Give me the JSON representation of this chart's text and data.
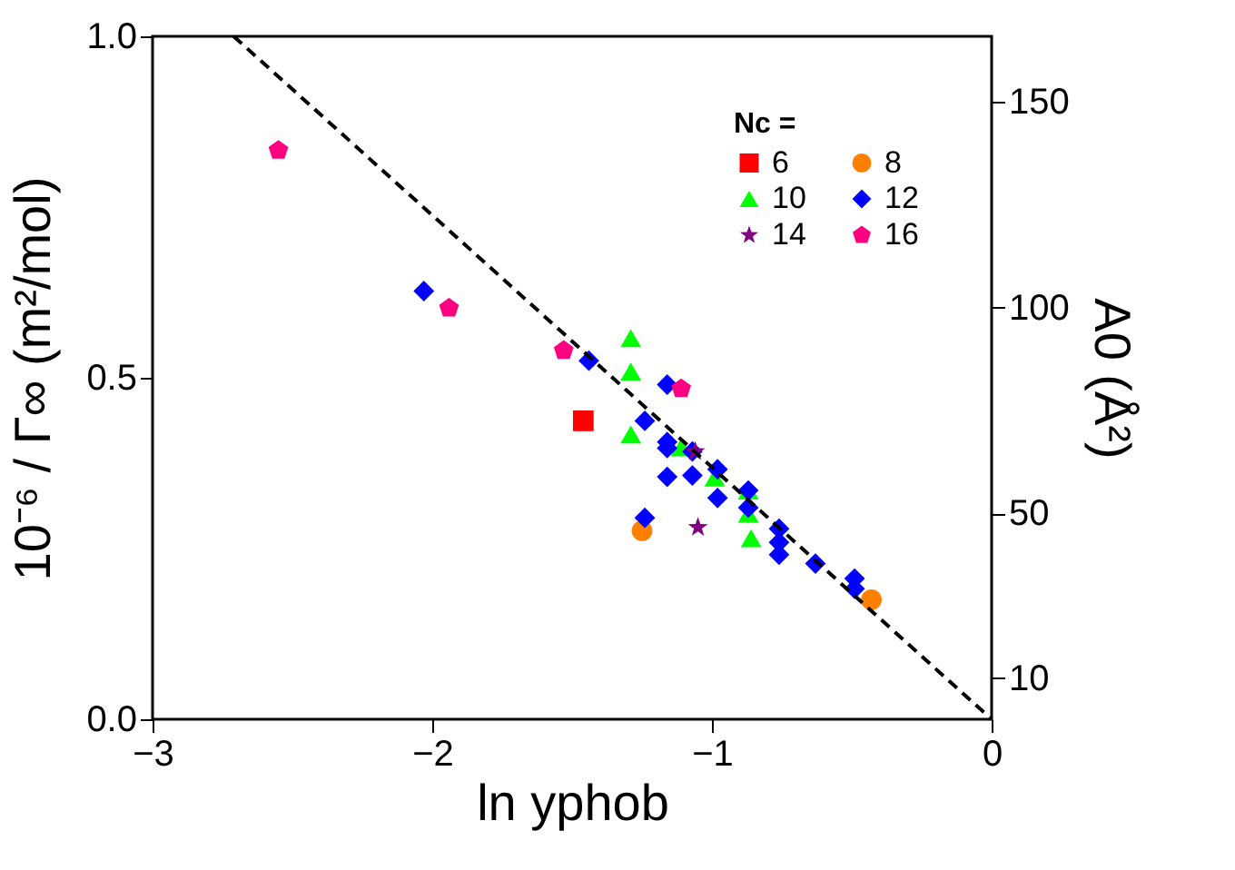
{
  "chart_data": {
    "type": "scatter",
    "xlabel": "ln yphob",
    "ylabel": "10⁻⁶ / Γ∞ (m²/mol)",
    "y2label": "A0 (Å²)",
    "legend_title": "Nc =",
    "xlim": [
      -3,
      0
    ],
    "xticks": [
      -3,
      -2,
      -1,
      0
    ],
    "ylim": [
      0,
      1
    ],
    "yticks": [
      {
        "value": 0,
        "label": "0.0"
      },
      0.5,
      {
        "value": 1,
        "label": "1.0"
      }
    ],
    "y2lim": [
      0,
      166
    ],
    "y2ticks": [
      10,
      50,
      100,
      150
    ],
    "grid": false,
    "legend": "top right",
    "series": [
      {
        "name": "6",
        "color": "#ff0000",
        "marker": "square",
        "x": [
          -1.46
        ],
        "values": [
          0.437
        ]
      },
      {
        "name": "8",
        "color": "#ff8000",
        "marker": "circle",
        "x": [
          -1.25,
          -0.43
        ],
        "values": [
          0.276,
          0.175
        ]
      },
      {
        "name": "10",
        "color": "#00ff00",
        "marker": "triangle",
        "x": [
          -1.29,
          -1.29,
          -1.29,
          -1.11,
          -0.99,
          -0.87,
          -0.87,
          -0.86
        ],
        "values": [
          0.558,
          0.509,
          0.417,
          0.398,
          0.354,
          0.335,
          0.301,
          0.265
        ]
      },
      {
        "name": "12",
        "color": "#0000ff",
        "marker": "diamond",
        "x": [
          -2.03,
          -1.44,
          -1.16,
          -1.24,
          -1.16,
          -1.16,
          -1.07,
          -1.16,
          -1.07,
          -0.98,
          -0.98,
          -0.87,
          -0.87,
          -0.76,
          -0.76,
          -0.76,
          -0.63,
          -0.49,
          -0.49,
          -1.24
        ],
        "values": [
          0.627,
          0.525,
          0.49,
          0.437,
          0.406,
          0.397,
          0.392,
          0.355,
          0.357,
          0.366,
          0.324,
          0.335,
          0.31,
          0.279,
          0.259,
          0.241,
          0.228,
          0.206,
          0.191,
          0.295
        ]
      },
      {
        "name": "14",
        "color": "#800080",
        "marker": "star",
        "x": [
          -1.05,
          -1.06
        ],
        "values": [
          0.281,
          0.392
        ]
      },
      {
        "name": "16",
        "color": "#ff0080",
        "x": [
          -2.55,
          -1.94,
          -1.53,
          -1.11
        ],
        "values": [
          0.833,
          0.602,
          0.54,
          0.484
        ]
      },
      {
        "type": "line",
        "color": "#000000",
        "line_style": "dashed",
        "marker": "none",
        "x": [
          -2.71,
          0
        ],
        "values": [
          1.0,
          0
        ]
      }
    ]
  }
}
